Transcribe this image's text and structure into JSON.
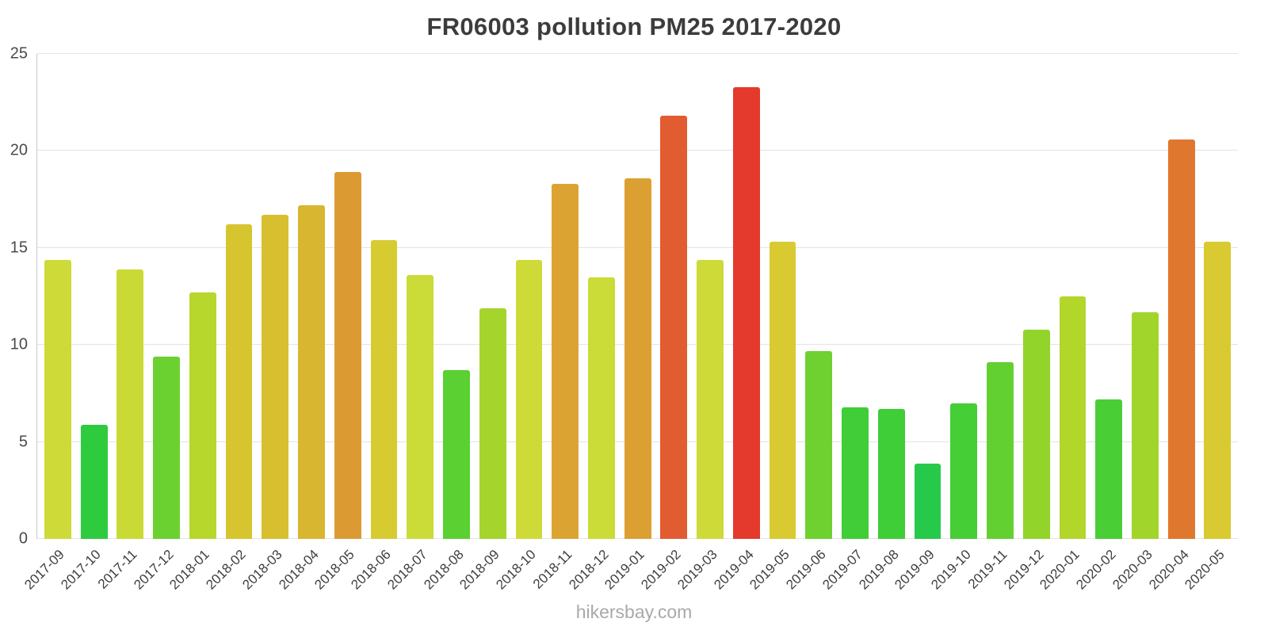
{
  "title": "FR06003 pollution PM25 2017-2020",
  "watermark": "hikersbay.com",
  "chart_data": {
    "type": "bar",
    "title": "FR06003 pollution PM25 2017-2020",
    "xlabel": "",
    "ylabel": "",
    "ylim": [
      0,
      25
    ],
    "yticks": [
      0,
      5,
      10,
      15,
      20,
      25
    ],
    "grid": true,
    "legend": false,
    "categories": [
      "2017-09",
      "2017-10",
      "2017-11",
      "2017-12",
      "2018-01",
      "2018-02",
      "2018-03",
      "2018-04",
      "2018-05",
      "2018-06",
      "2018-07",
      "2018-08",
      "2018-09",
      "2018-10",
      "2018-11",
      "2018-12",
      "2019-01",
      "2019-02",
      "2019-03",
      "2019-04",
      "2019-05",
      "2019-06",
      "2019-07",
      "2019-08",
      "2019-09",
      "2019-10",
      "2019-11",
      "2019-12",
      "2020-01",
      "2020-02",
      "2020-03",
      "2020-04",
      "2020-05"
    ],
    "values": [
      14.4,
      5.9,
      13.9,
      9.4,
      12.7,
      16.2,
      16.7,
      17.2,
      18.9,
      15.4,
      13.6,
      8.7,
      11.9,
      14.4,
      18.3,
      13.5,
      18.6,
      21.8,
      14.4,
      23.3,
      15.3,
      9.7,
      6.8,
      6.7,
      3.9,
      7.0,
      9.1,
      10.8,
      12.5,
      7.2,
      11.7,
      20.6,
      15.3
    ],
    "colors": [
      "#cdda38",
      "#2fcb3f",
      "#c9da35",
      "#6bd130",
      "#b7d72c",
      "#d7c52f",
      "#d8bf2f",
      "#d9b62f",
      "#dc9b32",
      "#d6cc31",
      "#cbdb37",
      "#5ad032",
      "#a5d52c",
      "#cdda38",
      "#dba432",
      "#cbdb37",
      "#dca032",
      "#e25c31",
      "#cdda38",
      "#e43a2e",
      "#d8ca30",
      "#6fd12f",
      "#40cd38",
      "#3fcd38",
      "#27c94b",
      "#45ce36",
      "#63d031",
      "#93d42b",
      "#b3d62b",
      "#49ce35",
      "#a2d52c",
      "#e0772f",
      "#d8ca30"
    ]
  }
}
